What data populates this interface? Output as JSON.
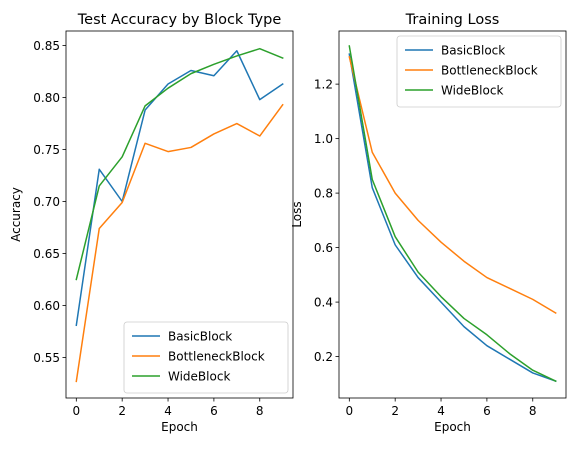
{
  "chart_data": [
    {
      "type": "line",
      "title": "Test Accuracy by Block Type",
      "xlabel": "Epoch",
      "ylabel": "Accuracy",
      "xlim": [
        -0.45,
        9.45
      ],
      "ylim": [
        0.511,
        0.864
      ],
      "xticks": [
        0,
        2,
        4,
        6,
        8
      ],
      "xtick_labels": [
        "0",
        "2",
        "4",
        "6",
        "8"
      ],
      "yticks": [
        0.55,
        0.6,
        0.65,
        0.7,
        0.75,
        0.8,
        0.85
      ],
      "ytick_labels": [
        "0.55",
        "0.60",
        "0.65",
        "0.70",
        "0.75",
        "0.80",
        "0.85"
      ],
      "legend_position": "lower-right",
      "grid": false,
      "x": [
        0,
        1,
        2,
        3,
        4,
        5,
        6,
        7,
        8,
        9
      ],
      "series": [
        {
          "name": "BasicBlock",
          "color": "#1f77b4",
          "values": [
            0.581,
            0.731,
            0.7,
            0.788,
            0.813,
            0.826,
            0.821,
            0.845,
            0.798,
            0.813
          ]
        },
        {
          "name": "BottleneckBlock",
          "color": "#ff7f0e",
          "values": [
            0.527,
            0.674,
            0.699,
            0.756,
            0.748,
            0.752,
            0.765,
            0.775,
            0.763,
            0.793
          ]
        },
        {
          "name": "WideBlock",
          "color": "#2ca02c",
          "values": [
            0.625,
            0.715,
            0.743,
            0.792,
            0.809,
            0.823,
            0.832,
            0.84,
            0.847,
            0.838
          ]
        }
      ]
    },
    {
      "type": "line",
      "title": "Training Loss",
      "xlabel": "Epoch",
      "ylabel": "Loss",
      "xlim": [
        -0.45,
        9.45
      ],
      "ylim": [
        0.048,
        1.395
      ],
      "xticks": [
        0,
        2,
        4,
        6,
        8
      ],
      "xtick_labels": [
        "0",
        "2",
        "4",
        "6",
        "8"
      ],
      "yticks": [
        0.2,
        0.4,
        0.6,
        0.8,
        1.0,
        1.2
      ],
      "ytick_labels": [
        "0.2",
        "0.4",
        "0.6",
        "0.8",
        "1.0",
        "1.2"
      ],
      "legend_position": "upper-right",
      "grid": false,
      "x": [
        0,
        1,
        2,
        3,
        4,
        5,
        6,
        7,
        8,
        9
      ],
      "series": [
        {
          "name": "BasicBlock",
          "color": "#1f77b4",
          "values": [
            1.31,
            0.82,
            0.61,
            0.49,
            0.4,
            0.31,
            0.24,
            0.19,
            0.14,
            0.11
          ]
        },
        {
          "name": "BottleneckBlock",
          "color": "#ff7f0e",
          "values": [
            1.3,
            0.95,
            0.8,
            0.7,
            0.62,
            0.55,
            0.49,
            0.45,
            0.41,
            0.36
          ]
        },
        {
          "name": "WideBlock",
          "color": "#2ca02c",
          "values": [
            1.34,
            0.85,
            0.64,
            0.51,
            0.42,
            0.34,
            0.28,
            0.21,
            0.15,
            0.11
          ]
        }
      ]
    }
  ]
}
